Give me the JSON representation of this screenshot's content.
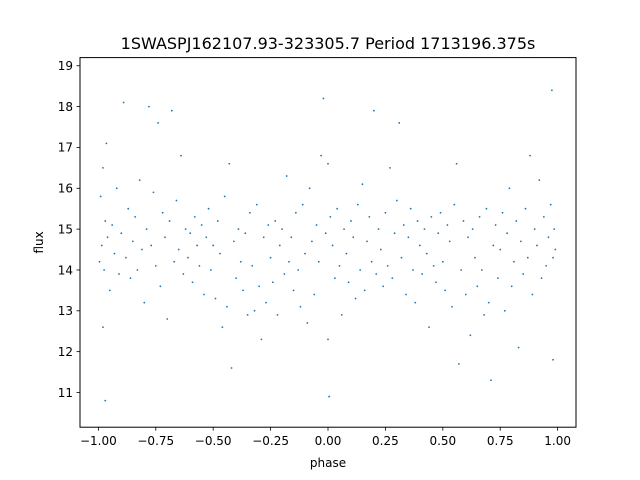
{
  "chart_data": {
    "type": "scatter",
    "title": "1SWASPJ162107.93-323305.7 Period 1713196.375s",
    "xlabel": "phase",
    "ylabel": "flux",
    "xlim": [
      -1.08,
      1.08
    ],
    "ylim": [
      10.15,
      19.2
    ],
    "xticks": [
      -1.0,
      -0.75,
      -0.5,
      -0.25,
      0.0,
      0.25,
      0.5,
      0.75,
      1.0
    ],
    "xtick_labels": [
      "−1.00",
      "−0.75",
      "−0.50",
      "−0.25",
      "0.00",
      "0.25",
      "0.50",
      "0.75",
      "1.00"
    ],
    "yticks": [
      11,
      12,
      13,
      14,
      15,
      16,
      17,
      18,
      19
    ],
    "ytick_labels": [
      "11",
      "12",
      "13",
      "14",
      "15",
      "16",
      "17",
      "18",
      "19"
    ],
    "grid": false,
    "marker_color": "#1f77b4",
    "series": [
      {
        "points": [
          [
            -0.995,
            14.2
          ],
          [
            -0.99,
            15.8
          ],
          [
            -0.985,
            14.6
          ],
          [
            -0.98,
            16.5
          ],
          [
            -0.98,
            12.6
          ],
          [
            -0.975,
            14.0
          ],
          [
            -0.97,
            15.2
          ],
          [
            -0.97,
            10.8
          ],
          [
            -0.965,
            17.1
          ],
          [
            -0.96,
            14.8
          ],
          [
            -0.95,
            13.5
          ],
          [
            -0.94,
            15.1
          ],
          [
            -0.93,
            14.4
          ],
          [
            -0.92,
            16.0
          ],
          [
            -0.91,
            13.9
          ],
          [
            -0.9,
            14.9
          ],
          [
            -0.89,
            18.1
          ],
          [
            -0.88,
            14.3
          ],
          [
            -0.87,
            15.5
          ],
          [
            -0.86,
            13.8
          ],
          [
            -0.85,
            14.7
          ],
          [
            -0.84,
            15.3
          ],
          [
            -0.83,
            14.0
          ],
          [
            -0.82,
            16.2
          ],
          [
            -0.81,
            14.5
          ],
          [
            -0.8,
            13.2
          ],
          [
            -0.79,
            15.0
          ],
          [
            -0.78,
            18.0
          ],
          [
            -0.77,
            14.6
          ],
          [
            -0.76,
            15.9
          ],
          [
            -0.75,
            14.1
          ],
          [
            -0.74,
            17.6
          ],
          [
            -0.73,
            13.6
          ],
          [
            -0.72,
            15.4
          ],
          [
            -0.71,
            14.8
          ],
          [
            -0.7,
            12.8
          ],
          [
            -0.69,
            15.2
          ],
          [
            -0.68,
            17.9
          ],
          [
            -0.67,
            14.2
          ],
          [
            -0.66,
            15.7
          ],
          [
            -0.65,
            14.5
          ],
          [
            -0.64,
            16.8
          ],
          [
            -0.63,
            13.9
          ],
          [
            -0.62,
            15.0
          ],
          [
            -0.61,
            14.3
          ],
          [
            -0.6,
            14.9
          ],
          [
            -0.59,
            13.7
          ],
          [
            -0.58,
            15.3
          ],
          [
            -0.57,
            14.6
          ],
          [
            -0.56,
            14.1
          ],
          [
            -0.55,
            15.1
          ],
          [
            -0.54,
            13.4
          ],
          [
            -0.53,
            14.8
          ],
          [
            -0.52,
            15.5
          ],
          [
            -0.51,
            14.0
          ],
          [
            -0.5,
            14.6
          ],
          [
            -0.49,
            13.3
          ],
          [
            -0.48,
            15.2
          ],
          [
            -0.47,
            14.4
          ],
          [
            -0.46,
            12.6
          ],
          [
            -0.45,
            15.8
          ],
          [
            -0.44,
            13.1
          ],
          [
            -0.43,
            16.6
          ],
          [
            -0.42,
            11.6
          ],
          [
            -0.41,
            14.7
          ],
          [
            -0.4,
            13.8
          ],
          [
            -0.39,
            15.0
          ],
          [
            -0.38,
            14.2
          ],
          [
            -0.37,
            13.5
          ],
          [
            -0.36,
            14.9
          ],
          [
            -0.35,
            12.9
          ],
          [
            -0.34,
            15.4
          ],
          [
            -0.33,
            14.1
          ],
          [
            -0.32,
            13.0
          ],
          [
            -0.31,
            15.6
          ],
          [
            -0.3,
            13.6
          ],
          [
            -0.29,
            12.3
          ],
          [
            -0.28,
            14.8
          ],
          [
            -0.27,
            13.2
          ],
          [
            -0.26,
            15.1
          ],
          [
            -0.25,
            14.3
          ],
          [
            -0.24,
            13.7
          ],
          [
            -0.23,
            15.2
          ],
          [
            -0.22,
            12.9
          ],
          [
            -0.21,
            14.6
          ],
          [
            -0.2,
            15.0
          ],
          [
            -0.19,
            13.9
          ],
          [
            -0.18,
            16.3
          ],
          [
            -0.17,
            14.2
          ],
          [
            -0.16,
            14.8
          ],
          [
            -0.15,
            13.5
          ],
          [
            -0.14,
            15.4
          ],
          [
            -0.13,
            14.0
          ],
          [
            -0.12,
            13.1
          ],
          [
            -0.11,
            15.6
          ],
          [
            -0.1,
            14.4
          ],
          [
            -0.09,
            12.7
          ],
          [
            -0.08,
            16.0
          ],
          [
            -0.07,
            14.7
          ],
          [
            -0.06,
            13.4
          ],
          [
            -0.05,
            15.1
          ],
          [
            -0.04,
            14.2
          ],
          [
            -0.03,
            16.8
          ],
          [
            -0.02,
            18.2
          ],
          [
            -0.01,
            14.9
          ],
          [
            0.0,
            16.6
          ],
          [
            0.0,
            12.3
          ],
          [
            0.005,
            10.9
          ],
          [
            0.01,
            15.3
          ],
          [
            0.02,
            14.6
          ],
          [
            0.03,
            13.8
          ],
          [
            0.04,
            15.5
          ],
          [
            0.05,
            14.1
          ],
          [
            0.06,
            12.9
          ],
          [
            0.07,
            15.0
          ],
          [
            0.08,
            14.4
          ],
          [
            0.09,
            13.7
          ],
          [
            0.1,
            15.2
          ],
          [
            0.11,
            14.8
          ],
          [
            0.12,
            13.3
          ],
          [
            0.13,
            15.6
          ],
          [
            0.14,
            14.0
          ],
          [
            0.15,
            16.1
          ],
          [
            0.16,
            13.5
          ],
          [
            0.17,
            14.7
          ],
          [
            0.18,
            15.3
          ],
          [
            0.19,
            14.2
          ],
          [
            0.2,
            17.9
          ],
          [
            0.21,
            13.9
          ],
          [
            0.22,
            15.0
          ],
          [
            0.23,
            14.5
          ],
          [
            0.24,
            13.6
          ],
          [
            0.25,
            15.4
          ],
          [
            0.26,
            14.1
          ],
          [
            0.27,
            16.5
          ],
          [
            0.28,
            13.8
          ],
          [
            0.29,
            14.9
          ],
          [
            0.3,
            15.7
          ],
          [
            0.31,
            17.6
          ],
          [
            0.32,
            14.3
          ],
          [
            0.33,
            15.1
          ],
          [
            0.34,
            13.4
          ],
          [
            0.35,
            14.8
          ],
          [
            0.36,
            15.5
          ],
          [
            0.37,
            14.0
          ],
          [
            0.38,
            13.2
          ],
          [
            0.39,
            15.2
          ],
          [
            0.4,
            14.6
          ],
          [
            0.41,
            13.9
          ],
          [
            0.42,
            15.0
          ],
          [
            0.43,
            14.4
          ],
          [
            0.44,
            12.6
          ],
          [
            0.45,
            15.3
          ],
          [
            0.46,
            14.1
          ],
          [
            0.47,
            13.7
          ],
          [
            0.48,
            14.9
          ],
          [
            0.49,
            15.4
          ],
          [
            0.5,
            14.2
          ],
          [
            0.51,
            13.5
          ],
          [
            0.52,
            15.1
          ],
          [
            0.53,
            14.7
          ],
          [
            0.54,
            13.1
          ],
          [
            0.55,
            15.6
          ],
          [
            0.56,
            16.6
          ],
          [
            0.57,
            11.7
          ],
          [
            0.58,
            14.0
          ],
          [
            0.59,
            15.2
          ],
          [
            0.6,
            13.4
          ],
          [
            0.61,
            14.8
          ],
          [
            0.62,
            12.4
          ],
          [
            0.63,
            15.0
          ],
          [
            0.64,
            14.3
          ],
          [
            0.65,
            13.6
          ],
          [
            0.66,
            15.3
          ],
          [
            0.67,
            14.0
          ],
          [
            0.68,
            12.9
          ],
          [
            0.69,
            15.5
          ],
          [
            0.7,
            13.2
          ],
          [
            0.71,
            11.3
          ],
          [
            0.72,
            14.6
          ],
          [
            0.73,
            15.1
          ],
          [
            0.74,
            13.8
          ],
          [
            0.75,
            14.5
          ],
          [
            0.76,
            15.4
          ],
          [
            0.77,
            13.0
          ],
          [
            0.78,
            14.9
          ],
          [
            0.79,
            16.0
          ],
          [
            0.8,
            13.6
          ],
          [
            0.81,
            14.2
          ],
          [
            0.82,
            15.2
          ],
          [
            0.83,
            12.1
          ],
          [
            0.84,
            14.7
          ],
          [
            0.85,
            13.9
          ],
          [
            0.86,
            15.5
          ],
          [
            0.87,
            14.3
          ],
          [
            0.88,
            16.8
          ],
          [
            0.89,
            13.4
          ],
          [
            0.9,
            15.0
          ],
          [
            0.91,
            14.6
          ],
          [
            0.92,
            16.2
          ],
          [
            0.93,
            13.8
          ],
          [
            0.94,
            15.3
          ],
          [
            0.95,
            14.1
          ],
          [
            0.96,
            14.8
          ],
          [
            0.97,
            15.6
          ],
          [
            0.975,
            18.4
          ],
          [
            0.98,
            14.3
          ],
          [
            0.98,
            11.8
          ],
          [
            0.985,
            15.0
          ],
          [
            0.99,
            14.5
          ]
        ]
      }
    ]
  }
}
